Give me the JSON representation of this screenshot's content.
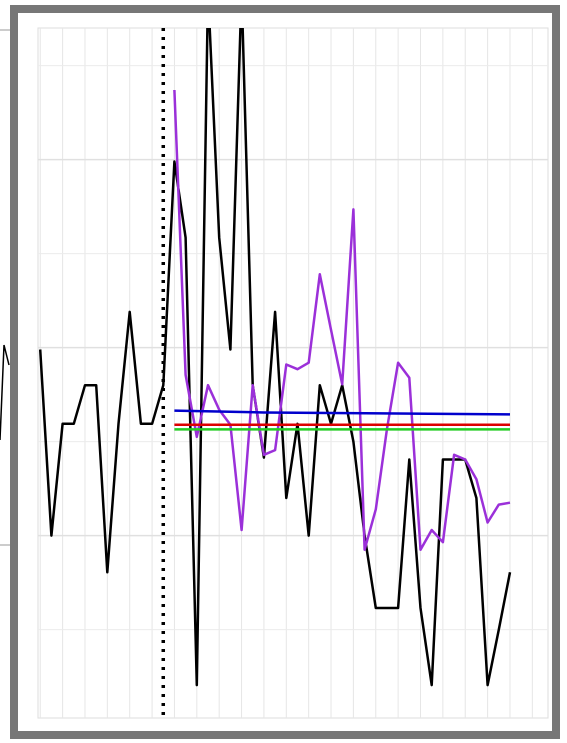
{
  "chart_data": {
    "type": "line",
    "xlim": [
      -0.2,
      45.4
    ],
    "ylim": [
      0.06,
      7.4
    ],
    "xticks": [
      0,
      2,
      4,
      6,
      8,
      10,
      12,
      14,
      16,
      18,
      20,
      22,
      24,
      26,
      28,
      30,
      32,
      34,
      36,
      38,
      40,
      42,
      44
    ],
    "yticks": [
      1,
      2,
      3,
      4,
      5,
      6,
      7
    ],
    "grid": true,
    "vline": {
      "x": 11,
      "color": "#000000"
    },
    "series": [
      {
        "color": "#000000",
        "x": [
          0,
          1,
          2,
          3,
          4,
          5,
          6,
          7,
          8,
          9,
          10,
          11,
          12,
          13,
          14,
          15,
          16,
          17,
          18,
          19,
          20,
          21,
          22,
          23,
          24,
          25,
          26,
          27,
          28,
          29,
          30,
          31,
          32,
          33,
          34,
          35,
          36,
          37,
          38,
          39,
          40,
          41,
          42
        ],
        "values": [
          3.98,
          2.0,
          3.19,
          3.19,
          3.6,
          3.6,
          1.61,
          3.19,
          4.38,
          3.19,
          3.19,
          3.6,
          5.98,
          5.17,
          0.41,
          7.8,
          5.17,
          3.98,
          7.8,
          3.6,
          2.83,
          4.38,
          2.4,
          3.19,
          2.0,
          3.6,
          3.19,
          3.6,
          3.0,
          2.0,
          1.23,
          1.23,
          1.23,
          2.81,
          1.23,
          0.41,
          2.81,
          2.81,
          2.81,
          2.4,
          0.41,
          1.0,
          1.61
        ]
      },
      {
        "color": "#9b30d9",
        "x": [
          12,
          13,
          14,
          15,
          16,
          17,
          18,
          19,
          20,
          21,
          22,
          23,
          24,
          25,
          26,
          27,
          28,
          29,
          30,
          31,
          32,
          33,
          34,
          35,
          36,
          37,
          38,
          39,
          40,
          41,
          42
        ],
        "values": [
          6.74,
          3.71,
          3.05,
          3.6,
          3.34,
          3.18,
          2.06,
          3.6,
          2.86,
          2.91,
          3.82,
          3.77,
          3.84,
          4.78,
          4.19,
          3.61,
          5.47,
          1.85,
          2.28,
          3.13,
          3.84,
          3.68,
          1.85,
          2.06,
          1.93,
          2.86,
          2.81,
          2.6,
          2.14,
          2.33,
          2.35
        ]
      },
      {
        "color": "#0000cc",
        "x": [
          12,
          20,
          42
        ],
        "values": [
          3.33,
          3.31,
          3.29
        ]
      },
      {
        "color": "#dd0000",
        "x": [
          12,
          42
        ],
        "values": [
          3.18,
          3.18
        ]
      },
      {
        "color": "#22cc22",
        "x": [
          12,
          42
        ],
        "values": [
          3.13,
          3.13
        ]
      }
    ]
  }
}
